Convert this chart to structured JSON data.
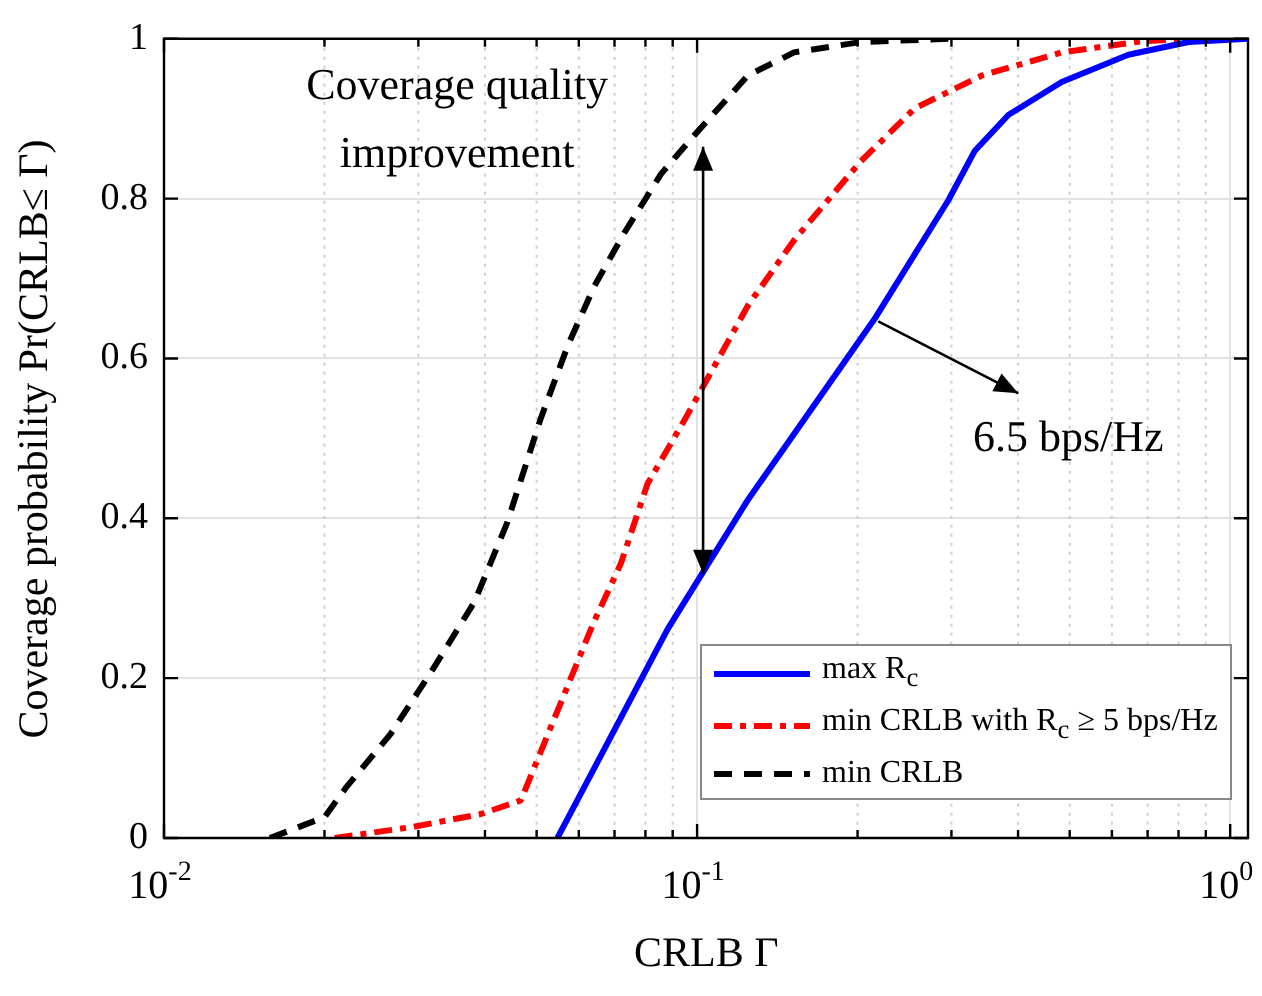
{
  "chart_data": {
    "type": "line",
    "xlabel": "CRLB Γ",
    "ylabel": "Coverage probability Pr(CRLB≤ Γ)",
    "log": "x",
    "xlim": [
      0.01,
      1.08
    ],
    "xticks": [
      {
        "value": 0.01,
        "label": "10$^{-2}$"
      },
      {
        "value": 0.1,
        "label": "10$^{-1}$"
      },
      {
        "value": 1,
        "label": "10$^{0}$"
      }
    ],
    "ylim": [
      0,
      1
    ],
    "yticks": [
      0,
      0.2,
      0.4,
      0.6,
      0.8,
      1
    ],
    "grid": true,
    "legend": "bottom right",
    "marker": "none",
    "series": [
      {
        "name": "max R$_{c}$",
        "color": "#0000ff",
        "line_style": "solid",
        "x": [
          0.0547,
          0.088,
          0.1245,
          0.215,
          0.296,
          0.332,
          0.384,
          0.483,
          0.644,
          0.836,
          1.08
        ],
        "values": [
          0,
          0.261,
          0.423,
          0.649,
          0.798,
          0.86,
          0.905,
          0.946,
          0.98,
          0.996,
          1
        ]
      },
      {
        "name": "min CRLB with R$_{c}$ ≥ 5 bps/Hz",
        "color": "#ff0000",
        "line_style": "dashdot",
        "x": [
          0.0209,
          0.0294,
          0.0393,
          0.0467,
          0.064,
          0.072,
          0.0807,
          0.096,
          0.1245,
          0.152,
          0.203,
          0.256,
          0.342,
          0.483,
          0.684,
          0.834
        ],
        "values": [
          0,
          0.014,
          0.03,
          0.047,
          0.27,
          0.344,
          0.443,
          0.53,
          0.666,
          0.748,
          0.847,
          0.913,
          0.954,
          0.983,
          0.997,
          1
        ]
      },
      {
        "name": "min CRLB",
        "color": "#000000",
        "line_style": "dashed",
        "x": [
          0.0158,
          0.02,
          0.022,
          0.0266,
          0.032,
          0.0382,
          0.044,
          0.0509,
          0.0572,
          0.0641,
          0.073,
          0.0856,
          0.099,
          0.1245,
          0.152,
          0.203,
          0.296
        ],
        "values": [
          0,
          0.026,
          0.064,
          0.13,
          0.212,
          0.295,
          0.394,
          0.525,
          0.616,
          0.69,
          0.757,
          0.831,
          0.88,
          0.954,
          0.983,
          0.996,
          1
        ]
      }
    ],
    "annotations": [
      {
        "text": "Coverage quality improvement",
        "x": 0.1,
        "y": 0.89
      },
      {
        "text": "6.5 bps/Hz",
        "x": 0.215,
        "y": 0.649
      }
    ]
  }
}
